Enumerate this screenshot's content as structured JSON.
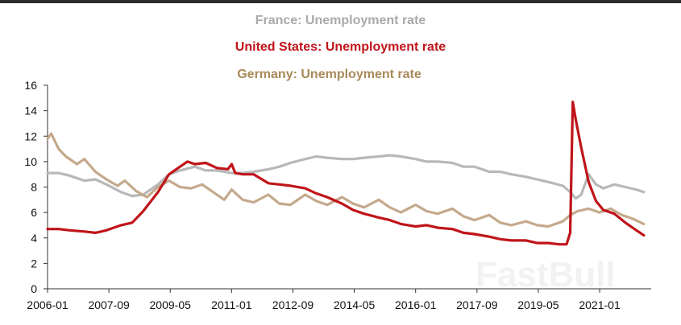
{
  "chart_data": {
    "type": "line",
    "title": "",
    "xlabel": "",
    "ylabel": "",
    "ylim": [
      0,
      16
    ],
    "yticks": [
      0,
      2,
      4,
      6,
      8,
      10,
      12,
      14,
      16
    ],
    "xlim": [
      2006.0,
      2022.4
    ],
    "xticks": [
      {
        "label": "2006-01",
        "t": 2006.0
      },
      {
        "label": "2007-09",
        "t": 2007.667
      },
      {
        "label": "2009-05",
        "t": 2009.333
      },
      {
        "label": "2011-01",
        "t": 2011.0
      },
      {
        "label": "2012-09",
        "t": 2012.667
      },
      {
        "label": "2014-05",
        "t": 2014.333
      },
      {
        "label": "2016-01",
        "t": 2016.0
      },
      {
        "label": "2017-09",
        "t": 2017.667
      },
      {
        "label": "2019-05",
        "t": 2019.333
      },
      {
        "label": "2021-01",
        "t": 2021.0
      }
    ],
    "legend_position": "top-center",
    "series": [
      {
        "name": "France:  Unemployment rate",
        "color": "#b8b8b8",
        "points": [
          [
            2006.0,
            9.1
          ],
          [
            2006.3,
            9.1
          ],
          [
            2006.6,
            8.9
          ],
          [
            2007.0,
            8.5
          ],
          [
            2007.3,
            8.6
          ],
          [
            2007.6,
            8.2
          ],
          [
            2008.0,
            7.6
          ],
          [
            2008.3,
            7.3
          ],
          [
            2008.6,
            7.4
          ],
          [
            2009.0,
            8.2
          ],
          [
            2009.3,
            9.0
          ],
          [
            2009.6,
            9.3
          ],
          [
            2010.0,
            9.6
          ],
          [
            2010.3,
            9.3
          ],
          [
            2010.6,
            9.3
          ],
          [
            2011.0,
            9.1
          ],
          [
            2011.3,
            9.1
          ],
          [
            2011.6,
            9.2
          ],
          [
            2012.0,
            9.4
          ],
          [
            2012.3,
            9.6
          ],
          [
            2012.6,
            9.9
          ],
          [
            2013.0,
            10.2
          ],
          [
            2013.3,
            10.4
          ],
          [
            2013.6,
            10.3
          ],
          [
            2014.0,
            10.2
          ],
          [
            2014.3,
            10.2
          ],
          [
            2014.6,
            10.3
          ],
          [
            2015.0,
            10.4
          ],
          [
            2015.3,
            10.5
          ],
          [
            2015.6,
            10.4
          ],
          [
            2016.0,
            10.2
          ],
          [
            2016.3,
            10.0
          ],
          [
            2016.6,
            10.0
          ],
          [
            2017.0,
            9.9
          ],
          [
            2017.3,
            9.6
          ],
          [
            2017.6,
            9.6
          ],
          [
            2018.0,
            9.2
          ],
          [
            2018.3,
            9.2
          ],
          [
            2018.6,
            9.0
          ],
          [
            2019.0,
            8.8
          ],
          [
            2019.3,
            8.6
          ],
          [
            2019.6,
            8.4
          ],
          [
            2020.0,
            8.1
          ],
          [
            2020.2,
            7.6
          ],
          [
            2020.35,
            7.1
          ],
          [
            2020.5,
            7.4
          ],
          [
            2020.7,
            9.0
          ],
          [
            2020.9,
            8.2
          ],
          [
            2021.1,
            7.9
          ],
          [
            2021.4,
            8.2
          ],
          [
            2021.7,
            8.0
          ],
          [
            2022.0,
            7.8
          ],
          [
            2022.2,
            7.6
          ]
        ]
      },
      {
        "name": "United States:  Unemployment rate",
        "color": "#c0141a",
        "points": [
          [
            2006.0,
            4.7
          ],
          [
            2006.3,
            4.7
          ],
          [
            2006.6,
            4.6
          ],
          [
            2007.0,
            4.5
          ],
          [
            2007.3,
            4.4
          ],
          [
            2007.6,
            4.6
          ],
          [
            2008.0,
            5.0
          ],
          [
            2008.3,
            5.2
          ],
          [
            2008.6,
            6.1
          ],
          [
            2009.0,
            7.6
          ],
          [
            2009.3,
            9.0
          ],
          [
            2009.6,
            9.6
          ],
          [
            2009.8,
            10.0
          ],
          [
            2010.0,
            9.8
          ],
          [
            2010.3,
            9.9
          ],
          [
            2010.6,
            9.5
          ],
          [
            2010.9,
            9.4
          ],
          [
            2011.0,
            9.8
          ],
          [
            2011.1,
            9.1
          ],
          [
            2011.3,
            9.0
          ],
          [
            2011.6,
            9.0
          ],
          [
            2012.0,
            8.3
          ],
          [
            2012.3,
            8.2
          ],
          [
            2012.6,
            8.1
          ],
          [
            2013.0,
            7.9
          ],
          [
            2013.3,
            7.5
          ],
          [
            2013.6,
            7.2
          ],
          [
            2014.0,
            6.7
          ],
          [
            2014.3,
            6.2
          ],
          [
            2014.6,
            5.9
          ],
          [
            2015.0,
            5.6
          ],
          [
            2015.3,
            5.4
          ],
          [
            2015.6,
            5.1
          ],
          [
            2016.0,
            4.9
          ],
          [
            2016.3,
            5.0
          ],
          [
            2016.6,
            4.8
          ],
          [
            2017.0,
            4.7
          ],
          [
            2017.3,
            4.4
          ],
          [
            2017.6,
            4.3
          ],
          [
            2018.0,
            4.1
          ],
          [
            2018.3,
            3.9
          ],
          [
            2018.6,
            3.8
          ],
          [
            2019.0,
            3.8
          ],
          [
            2019.3,
            3.6
          ],
          [
            2019.6,
            3.6
          ],
          [
            2019.9,
            3.5
          ],
          [
            2020.1,
            3.5
          ],
          [
            2020.2,
            4.4
          ],
          [
            2020.27,
            14.7
          ],
          [
            2020.35,
            13.3
          ],
          [
            2020.5,
            11.1
          ],
          [
            2020.7,
            8.4
          ],
          [
            2020.9,
            6.9
          ],
          [
            2021.1,
            6.2
          ],
          [
            2021.4,
            5.9
          ],
          [
            2021.7,
            5.2
          ],
          [
            2022.0,
            4.6
          ],
          [
            2022.2,
            4.2
          ]
        ]
      },
      {
        "name": "Germany:  Unemployment rate",
        "color": "#c4a98c",
        "points": [
          [
            2006.0,
            11.8
          ],
          [
            2006.1,
            12.2
          ],
          [
            2006.3,
            11.0
          ],
          [
            2006.5,
            10.4
          ],
          [
            2006.8,
            9.8
          ],
          [
            2007.0,
            10.2
          ],
          [
            2007.3,
            9.2
          ],
          [
            2007.6,
            8.6
          ],
          [
            2007.9,
            8.1
          ],
          [
            2008.1,
            8.5
          ],
          [
            2008.4,
            7.7
          ],
          [
            2008.7,
            7.2
          ],
          [
            2009.0,
            8.0
          ],
          [
            2009.3,
            8.5
          ],
          [
            2009.6,
            8.0
          ],
          [
            2009.9,
            7.9
          ],
          [
            2010.2,
            8.2
          ],
          [
            2010.5,
            7.6
          ],
          [
            2010.8,
            7.0
          ],
          [
            2011.0,
            7.8
          ],
          [
            2011.3,
            7.0
          ],
          [
            2011.6,
            6.8
          ],
          [
            2012.0,
            7.4
          ],
          [
            2012.3,
            6.7
          ],
          [
            2012.6,
            6.6
          ],
          [
            2013.0,
            7.4
          ],
          [
            2013.3,
            6.9
          ],
          [
            2013.6,
            6.6
          ],
          [
            2014.0,
            7.2
          ],
          [
            2014.3,
            6.7
          ],
          [
            2014.6,
            6.4
          ],
          [
            2015.0,
            7.0
          ],
          [
            2015.3,
            6.4
          ],
          [
            2015.6,
            6.0
          ],
          [
            2016.0,
            6.6
          ],
          [
            2016.3,
            6.1
          ],
          [
            2016.6,
            5.9
          ],
          [
            2017.0,
            6.3
          ],
          [
            2017.3,
            5.7
          ],
          [
            2017.6,
            5.4
          ],
          [
            2018.0,
            5.8
          ],
          [
            2018.3,
            5.2
          ],
          [
            2018.6,
            5.0
          ],
          [
            2019.0,
            5.3
          ],
          [
            2019.3,
            5.0
          ],
          [
            2019.6,
            4.9
          ],
          [
            2020.0,
            5.3
          ],
          [
            2020.2,
            5.8
          ],
          [
            2020.4,
            6.1
          ],
          [
            2020.7,
            6.3
          ],
          [
            2021.0,
            6.0
          ],
          [
            2021.3,
            6.3
          ],
          [
            2021.6,
            5.8
          ],
          [
            2021.9,
            5.5
          ],
          [
            2022.2,
            5.1
          ]
        ]
      }
    ]
  },
  "watermark": "FastBull"
}
